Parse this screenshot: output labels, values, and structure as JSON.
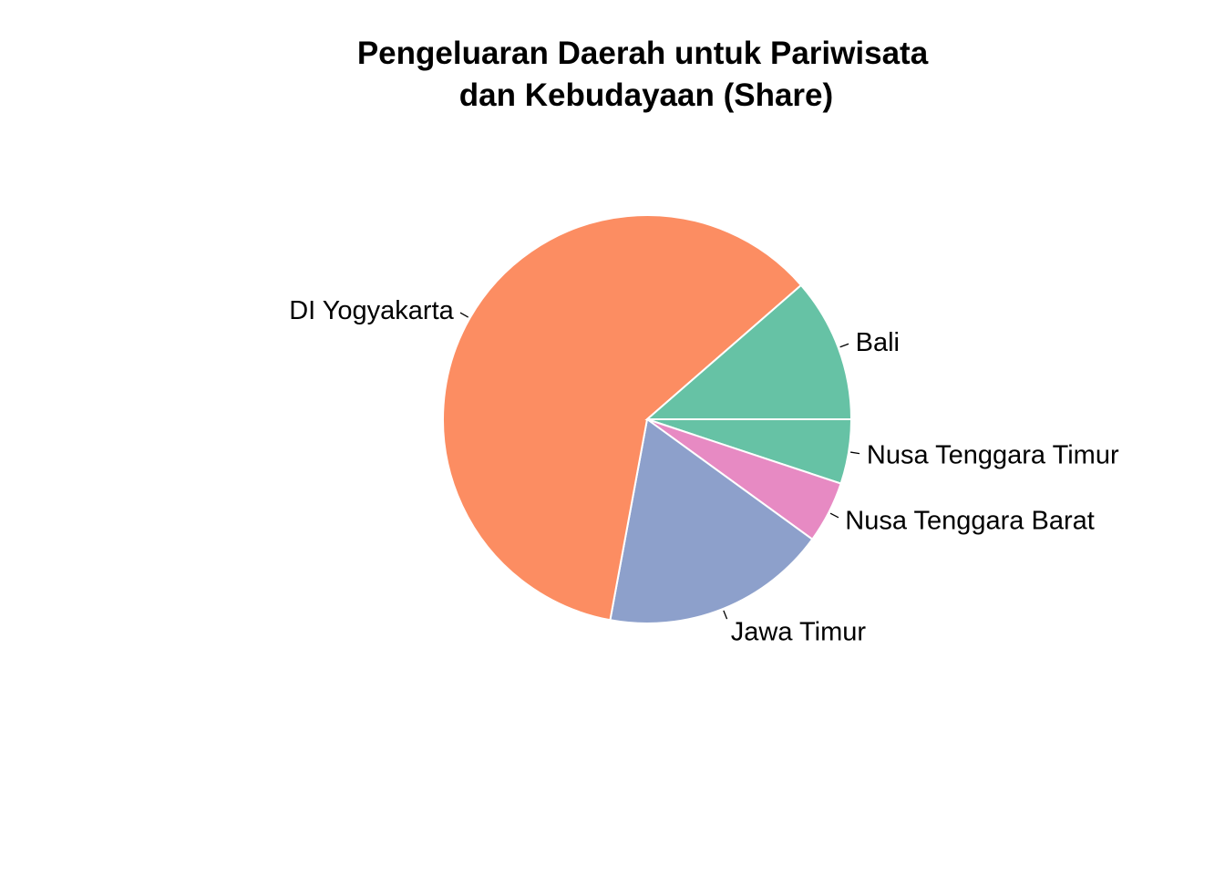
{
  "chart_data": {
    "type": "pie",
    "title": [
      "Pengeluaran Daerah untuk Pariwisata",
      "dan Kebudayaan (Share)"
    ],
    "start": "3 o'clock",
    "direction": "clockwise",
    "slices": [
      {
        "label": "Nusa Tenggara Timur",
        "value": 5.1,
        "color": "#66c2a5"
      },
      {
        "label": "Nusa Tenggara Barat",
        "value": 4.9,
        "color": "#e78ac3"
      },
      {
        "label": "Jawa Timur",
        "value": 17.9,
        "color": "#8da0cb"
      },
      {
        "label": "DI Yogyakarta",
        "value": 60.7,
        "color": "#fc8d62"
      },
      {
        "label": "Bali",
        "value": 11.4,
        "color": "#66c2a5"
      }
    ]
  }
}
